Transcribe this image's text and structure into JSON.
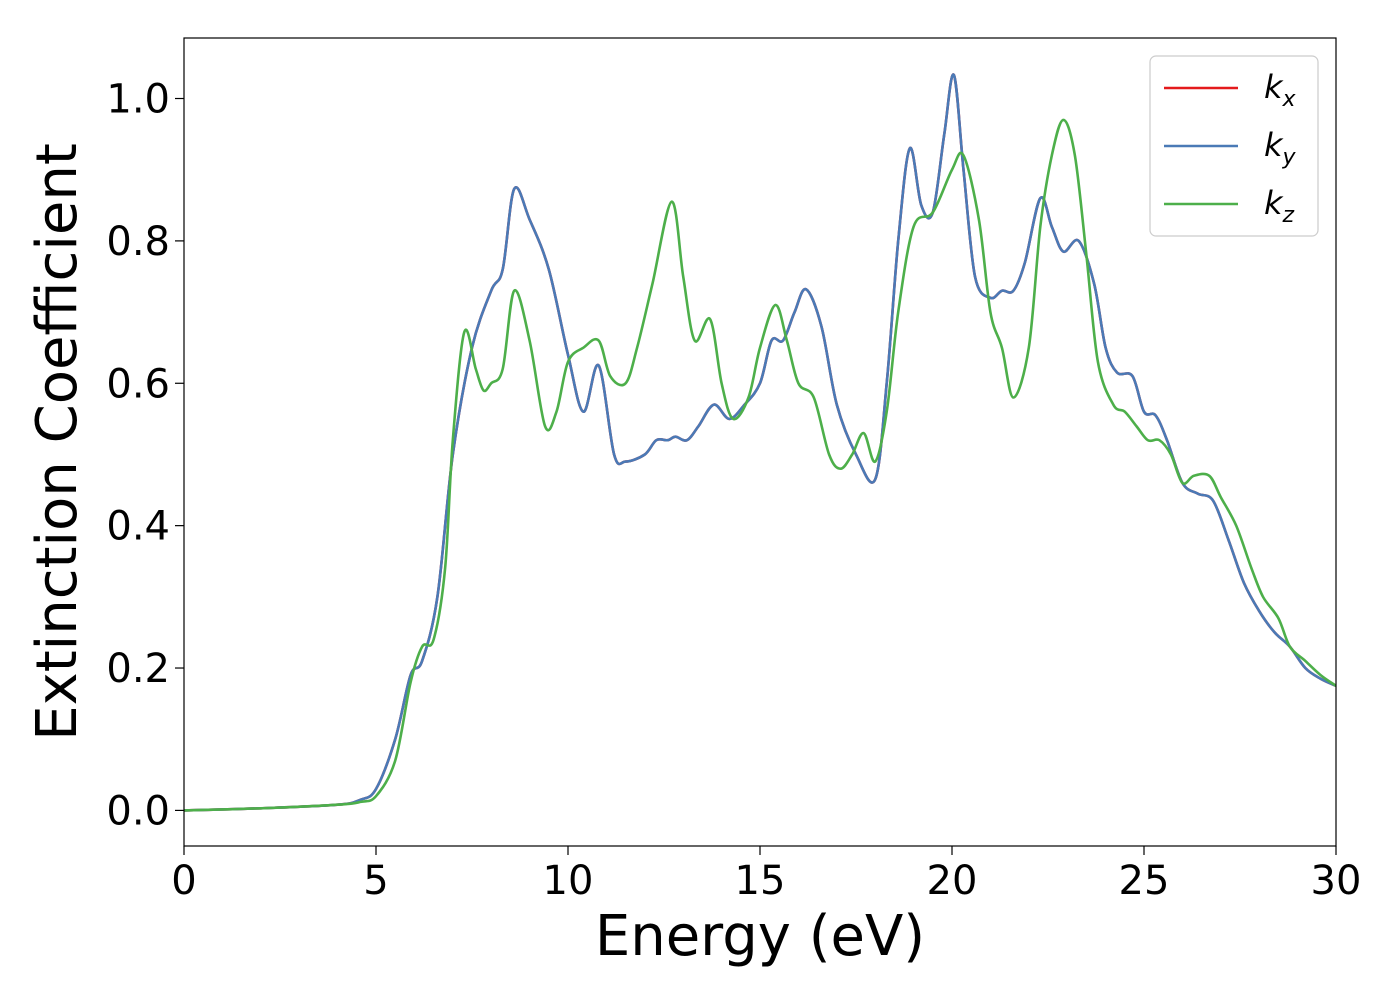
{
  "chart_data": {
    "type": "line",
    "xlabel": "Energy (eV)",
    "ylabel": "Extinction Coefficient",
    "xlim": [
      0,
      30
    ],
    "ylim": [
      -0.05,
      1.085
    ],
    "xticks": [
      "0",
      "5",
      "10",
      "15",
      "20",
      "25",
      "30"
    ],
    "yticks": [
      "0.0",
      "0.2",
      "0.4",
      "0.6",
      "0.8",
      "1.0"
    ],
    "grid": false,
    "legend_position": "top-right",
    "series": [
      {
        "name": "k_x",
        "label_main": "k",
        "label_sub": "x",
        "color": "#e41a1c",
        "x": [
          0,
          2,
          4,
          4.6,
          5,
          5.5,
          5.9,
          6.2,
          6.6,
          7.0,
          7.5,
          8.0,
          8.3,
          8.6,
          9.0,
          9.5,
          10.0,
          10.4,
          10.8,
          11.2,
          11.5,
          12.0,
          12.3,
          12.6,
          12.8,
          13.1,
          13.4,
          13.8,
          14.2,
          14.6,
          15.0,
          15.3,
          15.6,
          15.9,
          16.2,
          16.6,
          17.0,
          17.5,
          18.0,
          18.3,
          18.6,
          18.9,
          19.2,
          19.5,
          19.8,
          20.05,
          20.3,
          20.6,
          21.0,
          21.3,
          21.6,
          21.9,
          22.3,
          22.6,
          22.9,
          23.3,
          23.7,
          24.0,
          24.3,
          24.7,
          25.0,
          25.3,
          25.6,
          26.0,
          26.4,
          26.8,
          27.2,
          27.6,
          28.0,
          28.4,
          28.8,
          29.2,
          29.6,
          30
        ],
        "y": [
          0,
          0.003,
          0.008,
          0.015,
          0.03,
          0.1,
          0.19,
          0.21,
          0.3,
          0.5,
          0.65,
          0.73,
          0.76,
          0.873,
          0.83,
          0.76,
          0.64,
          0.56,
          0.625,
          0.5,
          0.49,
          0.5,
          0.52,
          0.52,
          0.525,
          0.52,
          0.54,
          0.57,
          0.55,
          0.57,
          0.6,
          0.66,
          0.66,
          0.7,
          0.732,
          0.68,
          0.57,
          0.5,
          0.465,
          0.6,
          0.8,
          0.93,
          0.85,
          0.84,
          0.95,
          1.033,
          0.9,
          0.75,
          0.72,
          0.73,
          0.73,
          0.77,
          0.86,
          0.82,
          0.785,
          0.8,
          0.74,
          0.65,
          0.615,
          0.61,
          0.56,
          0.555,
          0.52,
          0.46,
          0.445,
          0.435,
          0.38,
          0.32,
          0.28,
          0.25,
          0.23,
          0.2,
          0.185,
          0.175
        ]
      },
      {
        "name": "k_y",
        "label_main": "k",
        "label_sub": "y",
        "color": "#4a7ab6",
        "x": [
          0,
          2,
          4,
          4.6,
          5,
          5.5,
          5.9,
          6.2,
          6.6,
          7.0,
          7.5,
          8.0,
          8.3,
          8.6,
          9.0,
          9.5,
          10.0,
          10.4,
          10.8,
          11.2,
          11.5,
          12.0,
          12.3,
          12.6,
          12.8,
          13.1,
          13.4,
          13.8,
          14.2,
          14.6,
          15.0,
          15.3,
          15.6,
          15.9,
          16.2,
          16.6,
          17.0,
          17.5,
          18.0,
          18.3,
          18.6,
          18.9,
          19.2,
          19.5,
          19.8,
          20.05,
          20.3,
          20.6,
          21.0,
          21.3,
          21.6,
          21.9,
          22.3,
          22.6,
          22.9,
          23.3,
          23.7,
          24.0,
          24.3,
          24.7,
          25.0,
          25.3,
          25.6,
          26.0,
          26.4,
          26.8,
          27.2,
          27.6,
          28.0,
          28.4,
          28.8,
          29.2,
          29.6,
          30
        ],
        "y": [
          0,
          0.003,
          0.008,
          0.015,
          0.03,
          0.1,
          0.19,
          0.21,
          0.3,
          0.5,
          0.65,
          0.73,
          0.76,
          0.873,
          0.83,
          0.76,
          0.64,
          0.56,
          0.625,
          0.5,
          0.49,
          0.5,
          0.52,
          0.52,
          0.525,
          0.52,
          0.54,
          0.57,
          0.55,
          0.57,
          0.6,
          0.66,
          0.66,
          0.7,
          0.732,
          0.68,
          0.57,
          0.5,
          0.465,
          0.6,
          0.8,
          0.93,
          0.85,
          0.84,
          0.95,
          1.033,
          0.9,
          0.75,
          0.72,
          0.73,
          0.73,
          0.77,
          0.86,
          0.82,
          0.785,
          0.8,
          0.74,
          0.65,
          0.615,
          0.61,
          0.56,
          0.555,
          0.52,
          0.46,
          0.445,
          0.435,
          0.38,
          0.32,
          0.28,
          0.25,
          0.23,
          0.2,
          0.185,
          0.175
        ]
      },
      {
        "name": "k_z",
        "label_main": "k",
        "label_sub": "z",
        "color": "#4daf4a",
        "x": [
          0,
          2,
          4,
          4.6,
          5,
          5.5,
          5.9,
          6.2,
          6.5,
          6.8,
          7.0,
          7.3,
          7.6,
          7.8,
          8.0,
          8.3,
          8.6,
          9.0,
          9.4,
          9.7,
          10.0,
          10.4,
          10.8,
          11.1,
          11.5,
          11.8,
          12.2,
          12.7,
          13.0,
          13.3,
          13.7,
          14.0,
          14.3,
          14.7,
          15.0,
          15.4,
          15.7,
          16.0,
          16.4,
          16.8,
          17.1,
          17.4,
          17.7,
          18.0,
          18.3,
          18.6,
          19.0,
          19.5,
          20.0,
          20.3,
          20.7,
          21.0,
          21.3,
          21.6,
          22.0,
          22.3,
          22.6,
          22.9,
          23.2,
          23.5,
          23.8,
          24.2,
          24.5,
          24.8,
          25.1,
          25.4,
          25.7,
          26.0,
          26.3,
          26.7,
          27.0,
          27.4,
          27.8,
          28.1,
          28.5,
          28.8,
          29.2,
          29.6,
          30
        ],
        "y": [
          0,
          0.003,
          0.008,
          0.012,
          0.02,
          0.07,
          0.18,
          0.23,
          0.24,
          0.34,
          0.52,
          0.672,
          0.62,
          0.59,
          0.6,
          0.62,
          0.73,
          0.66,
          0.54,
          0.56,
          0.63,
          0.65,
          0.66,
          0.61,
          0.6,
          0.65,
          0.74,
          0.855,
          0.75,
          0.66,
          0.69,
          0.6,
          0.55,
          0.58,
          0.65,
          0.71,
          0.66,
          0.6,
          0.58,
          0.5,
          0.48,
          0.5,
          0.53,
          0.49,
          0.56,
          0.7,
          0.82,
          0.84,
          0.9,
          0.92,
          0.83,
          0.7,
          0.65,
          0.58,
          0.65,
          0.82,
          0.92,
          0.97,
          0.92,
          0.78,
          0.63,
          0.57,
          0.56,
          0.54,
          0.52,
          0.52,
          0.5,
          0.46,
          0.47,
          0.47,
          0.44,
          0.4,
          0.34,
          0.3,
          0.27,
          0.23,
          0.21,
          0.19,
          0.175
        ]
      }
    ]
  }
}
